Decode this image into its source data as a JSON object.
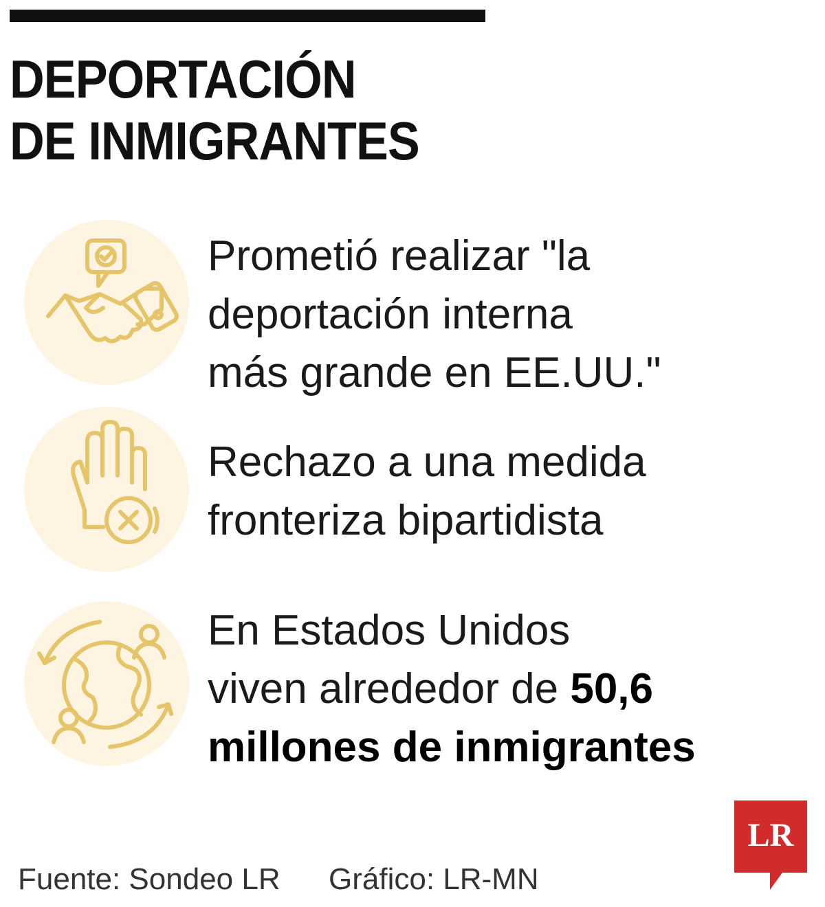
{
  "title": {
    "lines": [
      "DEPORTACIÓN",
      "DE INMIGRANTES"
    ]
  },
  "items": [
    {
      "lines": [
        "Prometió realizar \"la",
        "deportación interna",
        "más grande en EE.UU.\""
      ]
    },
    {
      "lines": [
        "Rechazo a una medida",
        "fronteriza bipartidista"
      ]
    },
    {
      "lines": [
        "En Estados Unidos",
        "viven alrededor de"
      ],
      "highlight_lines": [
        "50,6",
        "millones de inmigrantes"
      ]
    }
  ],
  "footer": {
    "source": "Fuente: Sondeo LR",
    "credit": "Gráfico: LR-MN"
  },
  "logo": "LR"
}
